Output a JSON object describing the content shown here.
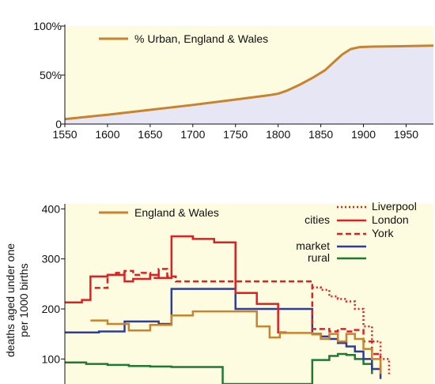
{
  "chart_data": [
    {
      "type": "area",
      "title": "",
      "xlabel": "",
      "ylabel": "",
      "xlim": [
        1550,
        1982
      ],
      "ylim": [
        0,
        100
      ],
      "x_ticks": [
        1550,
        1600,
        1650,
        1700,
        1750,
        1800,
        1850,
        1900,
        1950
      ],
      "y_ticks": [
        {
          "value": 0,
          "label": "0"
        },
        {
          "value": 50,
          "label": "50%"
        },
        {
          "value": 100,
          "label": "100%"
        }
      ],
      "legend_position": "top-left",
      "series": [
        {
          "name": "% Urban, England & Wales",
          "color": "#c8832f",
          "fill": "#e6e6f4",
          "x": [
            1550,
            1600,
            1650,
            1700,
            1750,
            1790,
            1800,
            1810,
            1825,
            1840,
            1855,
            1865,
            1875,
            1885,
            1895,
            1910,
            1950,
            1982
          ],
          "y": [
            5,
            9.5,
            14.5,
            19.5,
            25,
            29.5,
            31,
            34,
            40,
            47,
            55,
            63,
            71,
            76.5,
            78.5,
            79,
            79.5,
            80
          ]
        }
      ]
    },
    {
      "type": "line",
      "title": "",
      "xlabel": "",
      "ylabel": "deaths aged under one per 1000 births",
      "ylabel_lines": [
        "deaths aged under one",
        "per 1000 births"
      ],
      "xlim": [
        1550,
        1982
      ],
      "ylim": [
        50,
        410
      ],
      "y_ticks": [
        {
          "value": 100,
          "label": "100"
        },
        {
          "value": 200,
          "label": "200"
        },
        {
          "value": 300,
          "label": "300"
        },
        {
          "value": 400,
          "label": "400"
        }
      ],
      "legend_group_labels": {
        "cities": "cities",
        "market": "market",
        "rural": "rural"
      },
      "series": [
        {
          "name": "England & Wales",
          "color": "#c8832f",
          "dash": "",
          "x": [
            1580,
            1600,
            1625,
            1650,
            1675,
            1700,
            1725,
            1775,
            1790,
            1800,
            1802,
            1840,
            1850,
            1860,
            1870,
            1880,
            1890,
            1900,
            1910,
            1920
          ],
          "y": [
            177,
            170,
            157,
            168,
            187,
            195,
            195,
            165,
            143,
            143,
            152,
            149,
            140,
            150,
            135,
            150,
            140,
            120,
            100,
            70
          ]
        },
        {
          "name": "London",
          "color": "#e02020",
          "dash": "",
          "x": [
            1550,
            1570,
            1580,
            1600,
            1620,
            1630,
            1650,
            1660,
            1675,
            1700,
            1725,
            1750,
            1775,
            1800,
            1810
          ],
          "y": [
            213,
            218,
            265,
            268,
            255,
            260,
            268,
            262,
            345,
            340,
            333,
            232,
            210,
            153,
            153
          ]
        },
        {
          "name": "York",
          "color": "#e02020",
          "dash": "7,4",
          "x": [
            1585,
            1600,
            1610,
            1620,
            1630,
            1640,
            1650,
            1660,
            1670,
            1680,
            1840,
            1850,
            1860,
            1870,
            1880,
            1890,
            1900,
            1910,
            1920
          ],
          "y": [
            242,
            268,
            272,
            276,
            268,
            272,
            262,
            280,
            265,
            255,
            160,
            160,
            155,
            160,
            155,
            158,
            135,
            110,
            80
          ]
        },
        {
          "name": "Liverpool",
          "color": "#e02020",
          "dash": "2,3",
          "x": [
            1840,
            1850,
            1860,
            1870,
            1880,
            1890,
            1900,
            1910,
            1920,
            1930
          ],
          "y": [
            243,
            238,
            225,
            220,
            215,
            200,
            165,
            135,
            100,
            70
          ]
        },
        {
          "name": "market",
          "color": "#2c3e9a",
          "dash": "",
          "x": [
            1550,
            1590,
            1620,
            1660,
            1675,
            1725,
            1750,
            1800,
            1840,
            1850,
            1860,
            1870,
            1880,
            1890,
            1900,
            1910,
            1920
          ],
          "y": [
            153,
            155,
            175,
            170,
            240,
            240,
            200,
            200,
            150,
            145,
            140,
            132,
            125,
            115,
            100,
            80,
            60
          ]
        },
        {
          "name": "rural",
          "color": "#1e7a32",
          "dash": "",
          "x": [
            1550,
            1575,
            1600,
            1625,
            1650,
            1675,
            1700,
            1725,
            1735,
            1840,
            1860,
            1870,
            1880,
            1890,
            1900,
            1910
          ],
          "y": [
            93,
            90,
            88,
            86,
            85,
            84,
            84,
            84,
            50,
            98,
            106,
            110,
            108,
            100,
            90,
            70
          ]
        }
      ]
    }
  ]
}
